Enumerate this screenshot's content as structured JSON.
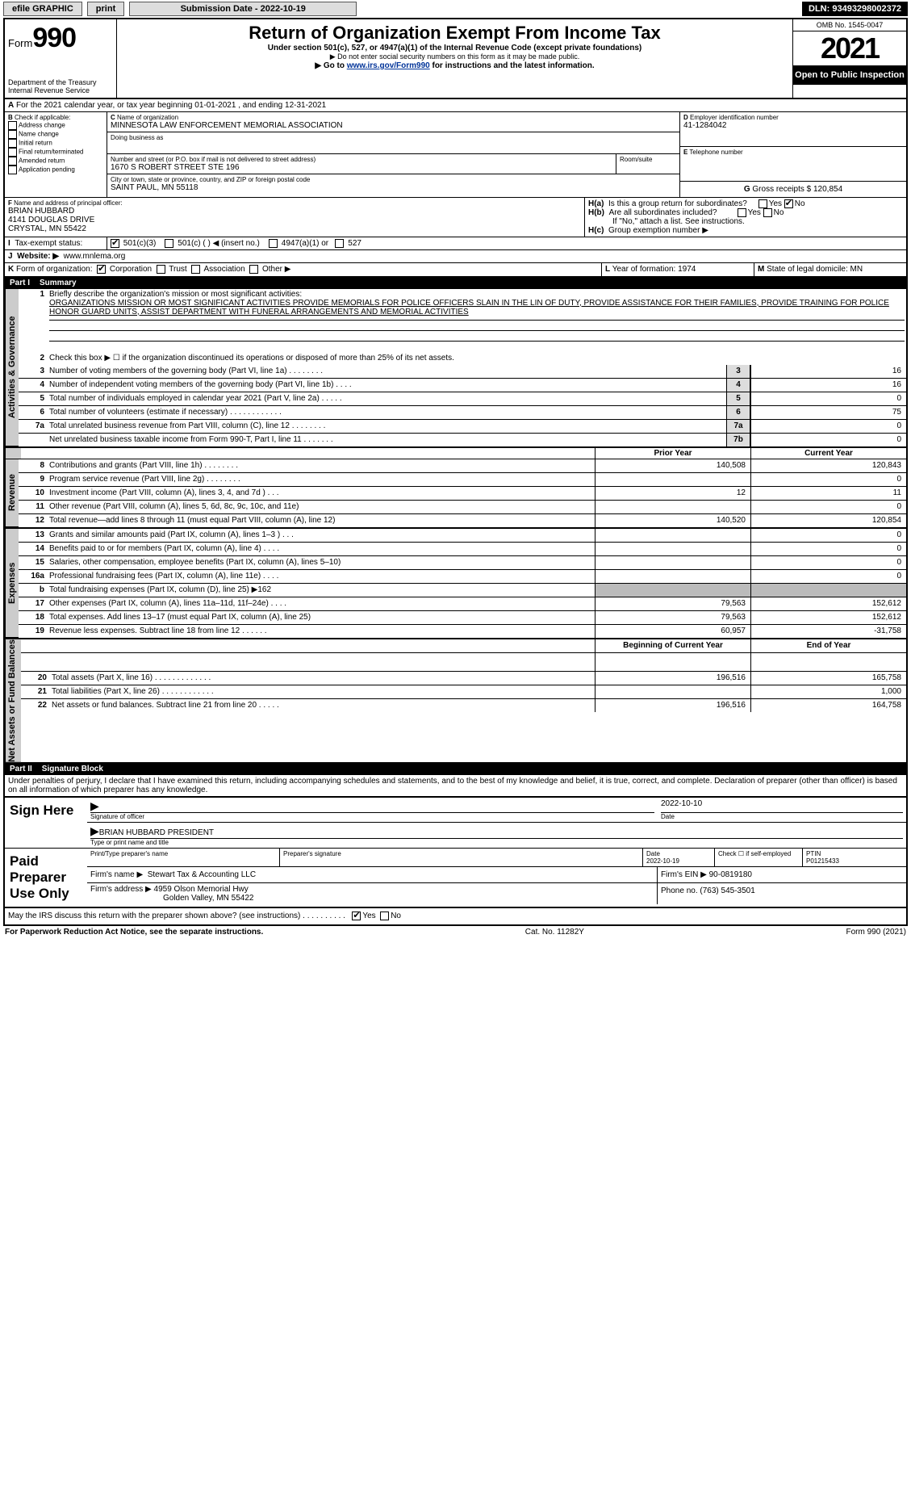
{
  "topbar": {
    "efile": "efile GRAPHIC",
    "print": "print",
    "sub_label": "Submission Date - 2022-10-19",
    "dln": "DLN: 93493298002372"
  },
  "header": {
    "form_prefix": "Form",
    "form_num": "990",
    "dept": "Department of the Treasury",
    "irs": "Internal Revenue Service",
    "title": "Return of Organization Exempt From Income Tax",
    "sub1": "Under section 501(c), 527, or 4947(a)(1) of the Internal Revenue Code (except private foundations)",
    "sub2": "▶ Do not enter social security numbers on this form as it may be made public.",
    "sub3_pre": "▶ Go to ",
    "sub3_link": "www.irs.gov/Form990",
    "sub3_post": " for instructions and the latest information.",
    "omb": "OMB No. 1545-0047",
    "year": "2021",
    "open": "Open to Public Inspection"
  },
  "A": {
    "text": "For the 2021 calendar year, or tax year beginning 01-01-2021     , and ending 12-31-2021"
  },
  "B": {
    "label": "Check if applicable:",
    "items": [
      "Address change",
      "Name change",
      "Initial return",
      "Final return/terminated",
      "Amended return",
      "Application pending"
    ]
  },
  "C": {
    "name_label": "Name of organization",
    "name": "MINNESOTA LAW ENFORCEMENT MEMORIAL ASSOCIATION",
    "dba_label": "Doing business as",
    "addr_label": "Number and street (or P.O. box if mail is not delivered to street address)",
    "addr": "1670 S ROBERT STREET STE 196",
    "room_label": "Room/suite",
    "city_label": "City or town, state or province, country, and ZIP or foreign postal code",
    "city": "SAINT PAUL, MN  55118"
  },
  "D": {
    "label": "Employer identification number",
    "val": "41-1284042"
  },
  "E": {
    "label": "Telephone number"
  },
  "G": {
    "label": "Gross receipts $",
    "val": "120,854"
  },
  "F": {
    "label": "Name and address of principal officer:",
    "name": "BRIAN HUBBARD",
    "addr1": "4141 DOUGLAS DRIVE",
    "addr2": "CRYSTAL, MN  55422"
  },
  "H": {
    "a": "Is this a group return for subordinates?",
    "b": "Are all subordinates included?",
    "note": "If \"No,\" attach a list. See instructions.",
    "c": "Group exemption number ▶",
    "yes": "Yes",
    "no": "No"
  },
  "I": {
    "label": "Tax-exempt status:",
    "o1": "501(c)(3)",
    "o2": "501(c) (   ) ◀ (insert no.)",
    "o3": "4947(a)(1) or",
    "o4": "527"
  },
  "J": {
    "label": "Website: ▶",
    "val": "www.mnlema.org"
  },
  "K": {
    "label": "Form of organization:",
    "corp": "Corporation",
    "trust": "Trust",
    "assoc": "Association",
    "other": "Other ▶"
  },
  "L": {
    "label": "Year of formation:",
    "val": "1974"
  },
  "M": {
    "label": "State of legal domicile:",
    "val": "MN"
  },
  "part1": {
    "num": "Part I",
    "title": "Summary",
    "l1_label": "Briefly describe the organization's mission or most significant activities:",
    "l1_text": "ORGANIZATIONS MISSION OR MOST SIGNIFICANT ACTIVITIES PROVIDE MEMORIALS FOR POLICE OFFICERS SLAIN IN THE LIN OF DUTY, PROVIDE ASSISTANCE FOR THEIR FAMILIES, PROVIDE TRAINING FOR POLICE HONOR GUARD UNITS, ASSIST DEPARTMENT WITH FUNERAL ARRANGEMENTS AND MEMORIAL ACTIVITIES",
    "l2": "Check this box ▶ ☐ if the organization discontinued its operations or disposed of more than 25% of its net assets.",
    "rows_ag": [
      {
        "n": "3",
        "t": "Number of voting members of the governing body (Part VI, line 1a)   .    .    .    .    .    .    .    .",
        "b": "3",
        "v": "16"
      },
      {
        "n": "4",
        "t": "Number of independent voting members of the governing body (Part VI, line 1b)    .    .    .    .",
        "b": "4",
        "v": "16"
      },
      {
        "n": "5",
        "t": "Total number of individuals employed in calendar year 2021 (Part V, line 2a)   .    .    .    .    .",
        "b": "5",
        "v": "0"
      },
      {
        "n": "6",
        "t": "Total number of volunteers (estimate if necessary)    .    .    .    .    .    .    .    .    .    .    .    .",
        "b": "6",
        "v": "75"
      },
      {
        "n": "7a",
        "t": "Total unrelated business revenue from Part VIII, column (C), line 12   .    .    .    .    .    .    .    .",
        "b": "7a",
        "v": "0"
      },
      {
        "n": "",
        "t": "Net unrelated business taxable income from Form 990-T, Part I, line 11   .    .    .    .    .    .    .",
        "b": "7b",
        "v": "0"
      }
    ],
    "col_prior": "Prior Year",
    "col_current": "Current Year",
    "col_begin": "Beginning of Current Year",
    "col_end": "End of Year",
    "rows_rev": [
      {
        "n": "8",
        "t": "Contributions and grants (Part VIII, line 1h)    .    .    .    .    .    .    .    .",
        "p": "140,508",
        "c": "120,843"
      },
      {
        "n": "9",
        "t": "Program service revenue (Part VIII, line 2g)    .    .    .    .    .    .    .    .",
        "p": "",
        "c": "0"
      },
      {
        "n": "10",
        "t": "Investment income (Part VIII, column (A), lines 3, 4, and 7d )    .    .    .",
        "p": "12",
        "c": "11"
      },
      {
        "n": "11",
        "t": "Other revenue (Part VIII, column (A), lines 5, 6d, 8c, 9c, 10c, and 11e)",
        "p": "",
        "c": "0"
      },
      {
        "n": "12",
        "t": "Total revenue—add lines 8 through 11 (must equal Part VIII, column (A), line 12)",
        "p": "140,520",
        "c": "120,854"
      }
    ],
    "rows_exp": [
      {
        "n": "13",
        "t": "Grants and similar amounts paid (Part IX, column (A), lines 1–3 )   .    .    .",
        "p": "",
        "c": "0"
      },
      {
        "n": "14",
        "t": "Benefits paid to or for members (Part IX, column (A), line 4)   .    .    .    .",
        "p": "",
        "c": "0"
      },
      {
        "n": "15",
        "t": "Salaries, other compensation, employee benefits (Part IX, column (A), lines 5–10)",
        "p": "",
        "c": "0"
      },
      {
        "n": "16a",
        "t": "Professional fundraising fees (Part IX, column (A), line 11e)   .    .    .    .",
        "p": "",
        "c": "0"
      },
      {
        "n": "b",
        "t": "Total fundraising expenses (Part IX, column (D), line 25) ▶162",
        "p": "shaded",
        "c": "shaded"
      },
      {
        "n": "17",
        "t": "Other expenses (Part IX, column (A), lines 11a–11d, 11f–24e)    .    .    .    .",
        "p": "79,563",
        "c": "152,612"
      },
      {
        "n": "18",
        "t": "Total expenses. Add lines 13–17 (must equal Part IX, column (A), line 25)",
        "p": "79,563",
        "c": "152,612"
      },
      {
        "n": "19",
        "t": "Revenue less expenses. Subtract line 18 from line 12    .    .    .    .    .    .",
        "p": "60,957",
        "c": "-31,758"
      }
    ],
    "rows_na": [
      {
        "n": "20",
        "t": "Total assets (Part X, line 16)   .    .    .    .    .    .    .    .    .    .    .    .    .",
        "p": "196,516",
        "c": "165,758"
      },
      {
        "n": "21",
        "t": "Total liabilities (Part X, line 26)    .    .    .    .    .    .    .    .    .    .    .    .",
        "p": "",
        "c": "1,000"
      },
      {
        "n": "22",
        "t": "Net assets or fund balances. Subtract line 21 from line 20    .    .    .    .    .",
        "p": "196,516",
        "c": "164,758"
      }
    ]
  },
  "side": {
    "ag": "Activities & Governance",
    "rev": "Revenue",
    "exp": "Expenses",
    "na": "Net Assets or Fund Balances"
  },
  "part2": {
    "num": "Part II",
    "title": "Signature Block",
    "decl": "Under penalties of perjury, I declare that I have examined this return, including accompanying schedules and statements, and to the best of my knowledge and belief, it is true, correct, and complete. Declaration of preparer (other than officer) is based on all information of which preparer has any knowledge."
  },
  "sign": {
    "here": "Sign Here",
    "sig_officer": "Signature of officer",
    "date": "Date",
    "date_val": "2022-10-10",
    "name": "BRIAN HUBBARD  PRESIDENT",
    "name_label": "Type or print name and title"
  },
  "paid": {
    "label": "Paid Preparer Use Only",
    "prep_name_label": "Print/Type preparer's name",
    "prep_sig_label": "Preparer's signature",
    "date_label": "Date",
    "date_val": "2022-10-19",
    "check_label": "Check ☐ if self-employed",
    "ptin_label": "PTIN",
    "ptin": "P01215433",
    "firm_name_label": "Firm's name    ▶",
    "firm_name": "Stewart Tax & Accounting LLC",
    "firm_ein_label": "Firm's EIN ▶",
    "firm_ein": "90-0819180",
    "firm_addr_label": "Firm's address ▶",
    "firm_addr1": "4959 Olson Memorial Hwy",
    "firm_addr2": "Golden Valley, MN  55422",
    "phone_label": "Phone no.",
    "phone": "(763) 545-3501"
  },
  "may": {
    "text": "May the IRS discuss this return with the preparer shown above? (see instructions)    .    .    .    .    .    .    .    .    .    .",
    "yes": "Yes",
    "no": "No"
  },
  "footer": {
    "left": "For Paperwork Reduction Act Notice, see the separate instructions.",
    "mid": "Cat. No. 11282Y",
    "right": "Form 990 (2021)"
  }
}
